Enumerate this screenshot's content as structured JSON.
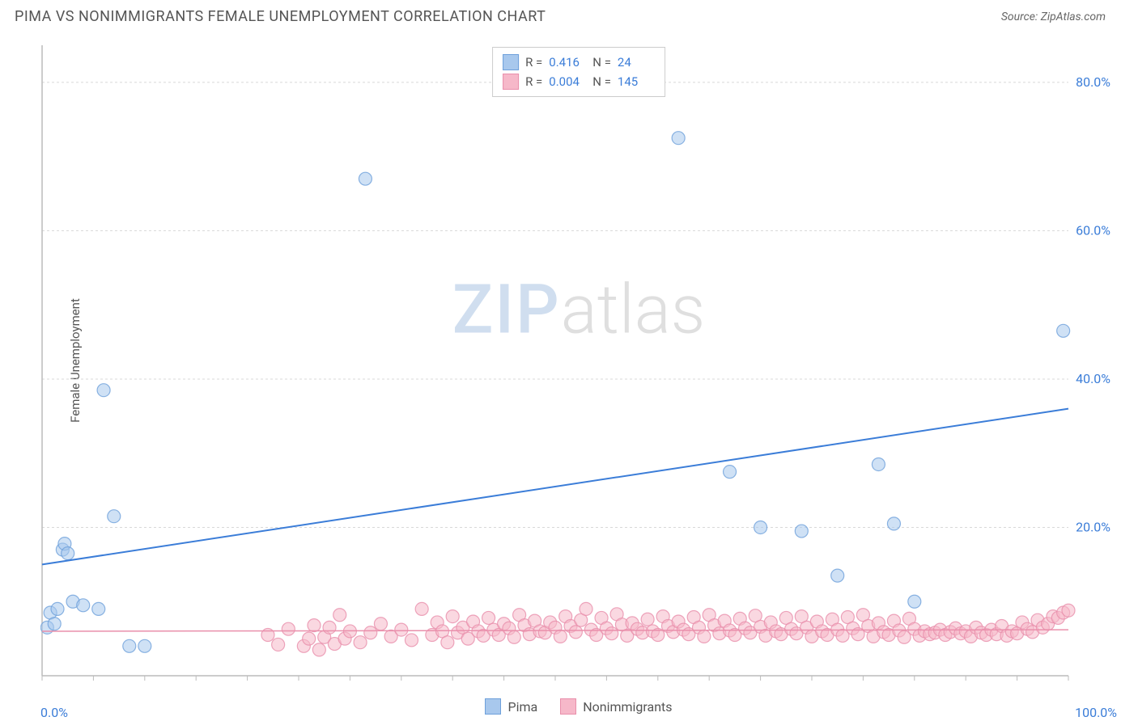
{
  "title": "PIMA VS NONIMMIGRANTS FEMALE UNEMPLOYMENT CORRELATION CHART",
  "source": "Source: ZipAtlas.com",
  "ylabel": "Female Unemployment",
  "watermark": {
    "part1": "ZIP",
    "part2": "atlas"
  },
  "chart": {
    "type": "scatter",
    "background_color": "#ffffff",
    "grid_color": "#d8d8d8",
    "axis_color": "#bbbbbb",
    "xlim": [
      0,
      100
    ],
    "ylim": [
      0,
      85
    ],
    "y_ticks": [
      20,
      40,
      60,
      80
    ],
    "y_tick_labels": [
      "20.0%",
      "40.0%",
      "60.0%",
      "80.0%"
    ],
    "y_tick_color": "#3b7dd8",
    "y_tick_fontsize": 16,
    "x_minor_ticks": [
      0,
      5,
      10,
      15,
      20,
      25,
      30,
      35,
      40,
      45,
      50,
      55,
      60,
      65,
      70,
      75,
      80,
      85,
      90,
      95,
      100
    ],
    "x_start_label": "0.0%",
    "x_end_label": "100.0%",
    "x_label_color": "#3b7dd8",
    "marker_radius": 8,
    "marker_opacity": 0.55,
    "series": [
      {
        "name": "Pima",
        "fill": "#a8c8ed",
        "stroke": "#6ea0db",
        "R": "0.416",
        "N": "24",
        "trend": {
          "x1": 0,
          "y1": 15,
          "x2": 100,
          "y2": 36,
          "color": "#3b7dd8",
          "width": 2
        },
        "points": [
          [
            0.5,
            6.5
          ],
          [
            0.8,
            8.5
          ],
          [
            1.2,
            7.0
          ],
          [
            1.5,
            9.0
          ],
          [
            2.0,
            17.0
          ],
          [
            2.2,
            17.8
          ],
          [
            2.5,
            16.5
          ],
          [
            3.0,
            10.0
          ],
          [
            4.0,
            9.5
          ],
          [
            5.5,
            9.0
          ],
          [
            6.0,
            38.5
          ],
          [
            7.0,
            21.5
          ],
          [
            8.5,
            4.0
          ],
          [
            10.0,
            4.0
          ],
          [
            31.5,
            67.0
          ],
          [
            62.0,
            72.5
          ],
          [
            67.0,
            27.5
          ],
          [
            70.0,
            20.0
          ],
          [
            74.0,
            19.5
          ],
          [
            77.5,
            13.5
          ],
          [
            81.5,
            28.5
          ],
          [
            83.0,
            20.5
          ],
          [
            85.0,
            10.0
          ],
          [
            99.5,
            46.5
          ]
        ]
      },
      {
        "name": "Nonimmigrants",
        "fill": "#f6b8c9",
        "stroke": "#e98fab",
        "R": "0.004",
        "N": "145",
        "trend": {
          "x1": 0,
          "y1": 6.0,
          "x2": 100,
          "y2": 6.2,
          "color": "#e98fab",
          "width": 1.5
        },
        "points": [
          [
            22,
            5.5
          ],
          [
            23,
            4.2
          ],
          [
            24,
            6.3
          ],
          [
            25.5,
            4.0
          ],
          [
            26,
            5.0
          ],
          [
            26.5,
            6.8
          ],
          [
            27,
            3.5
          ],
          [
            27.5,
            5.2
          ],
          [
            28,
            6.5
          ],
          [
            28.5,
            4.3
          ],
          [
            29,
            8.2
          ],
          [
            29.5,
            5.0
          ],
          [
            30,
            6.0
          ],
          [
            31,
            4.5
          ],
          [
            32,
            5.8
          ],
          [
            33,
            7.0
          ],
          [
            34,
            5.3
          ],
          [
            35,
            6.2
          ],
          [
            36,
            4.8
          ],
          [
            37,
            9.0
          ],
          [
            38,
            5.5
          ],
          [
            38.5,
            7.2
          ],
          [
            39,
            6.0
          ],
          [
            39.5,
            4.5
          ],
          [
            40,
            8.0
          ],
          [
            40.5,
            5.8
          ],
          [
            41,
            6.5
          ],
          [
            41.5,
            5.0
          ],
          [
            42,
            7.3
          ],
          [
            42.5,
            6.0
          ],
          [
            43,
            5.4
          ],
          [
            43.5,
            7.8
          ],
          [
            44,
            6.2
          ],
          [
            44.5,
            5.5
          ],
          [
            45,
            7.0
          ],
          [
            45.5,
            6.4
          ],
          [
            46,
            5.2
          ],
          [
            46.5,
            8.2
          ],
          [
            47,
            6.8
          ],
          [
            47.5,
            5.6
          ],
          [
            48,
            7.4
          ],
          [
            48.5,
            6.0
          ],
          [
            49,
            5.8
          ],
          [
            49.5,
            7.2
          ],
          [
            50,
            6.5
          ],
          [
            50.5,
            5.3
          ],
          [
            51,
            8.0
          ],
          [
            51.5,
            6.7
          ],
          [
            52,
            5.9
          ],
          [
            52.5,
            7.5
          ],
          [
            53,
            9.0
          ],
          [
            53.5,
            6.2
          ],
          [
            54,
            5.5
          ],
          [
            54.5,
            7.8
          ],
          [
            55,
            6.4
          ],
          [
            55.5,
            5.7
          ],
          [
            56,
            8.3
          ],
          [
            56.5,
            6.9
          ],
          [
            57,
            5.4
          ],
          [
            57.5,
            7.1
          ],
          [
            58,
            6.3
          ],
          [
            58.5,
            5.8
          ],
          [
            59,
            7.6
          ],
          [
            59.5,
            6.0
          ],
          [
            60,
            5.5
          ],
          [
            60.5,
            8.0
          ],
          [
            61,
            6.7
          ],
          [
            61.5,
            5.9
          ],
          [
            62,
            7.3
          ],
          [
            62.5,
            6.2
          ],
          [
            63,
            5.6
          ],
          [
            63.5,
            7.9
          ],
          [
            64,
            6.5
          ],
          [
            64.5,
            5.3
          ],
          [
            65,
            8.2
          ],
          [
            65.5,
            6.8
          ],
          [
            66,
            5.7
          ],
          [
            66.5,
            7.4
          ],
          [
            67,
            6.1
          ],
          [
            67.5,
            5.5
          ],
          [
            68,
            7.7
          ],
          [
            68.5,
            6.4
          ],
          [
            69,
            5.8
          ],
          [
            69.5,
            8.1
          ],
          [
            70,
            6.6
          ],
          [
            70.5,
            5.4
          ],
          [
            71,
            7.2
          ],
          [
            71.5,
            6.0
          ],
          [
            72,
            5.6
          ],
          [
            72.5,
            7.8
          ],
          [
            73,
            6.3
          ],
          [
            73.5,
            5.7
          ],
          [
            74,
            8.0
          ],
          [
            74.5,
            6.5
          ],
          [
            75,
            5.3
          ],
          [
            75.5,
            7.3
          ],
          [
            76,
            6.0
          ],
          [
            76.5,
            5.5
          ],
          [
            77,
            7.6
          ],
          [
            77.5,
            6.2
          ],
          [
            78,
            5.4
          ],
          [
            78.5,
            7.9
          ],
          [
            79,
            6.4
          ],
          [
            79.5,
            5.6
          ],
          [
            80,
            8.2
          ],
          [
            80.5,
            6.7
          ],
          [
            81,
            5.3
          ],
          [
            81.5,
            7.1
          ],
          [
            82,
            5.9
          ],
          [
            82.5,
            5.5
          ],
          [
            83,
            7.4
          ],
          [
            83.5,
            6.1
          ],
          [
            84,
            5.2
          ],
          [
            84.5,
            7.7
          ],
          [
            85,
            6.3
          ],
          [
            85.5,
            5.4
          ],
          [
            86,
            6.0
          ],
          [
            86.5,
            5.6
          ],
          [
            87,
            5.8
          ],
          [
            87.5,
            6.2
          ],
          [
            88,
            5.5
          ],
          [
            88.5,
            5.9
          ],
          [
            89,
            6.4
          ],
          [
            89.5,
            5.7
          ],
          [
            90,
            6.0
          ],
          [
            90.5,
            5.3
          ],
          [
            91,
            6.5
          ],
          [
            91.5,
            5.8
          ],
          [
            92,
            5.5
          ],
          [
            92.5,
            6.2
          ],
          [
            93,
            5.6
          ],
          [
            93.5,
            6.7
          ],
          [
            94,
            5.4
          ],
          [
            94.5,
            6.0
          ],
          [
            95,
            5.7
          ],
          [
            95.5,
            7.2
          ],
          [
            96,
            6.3
          ],
          [
            96.5,
            5.9
          ],
          [
            97,
            7.5
          ],
          [
            97.5,
            6.5
          ],
          [
            98,
            7.0
          ],
          [
            98.5,
            8.0
          ],
          [
            99,
            7.8
          ],
          [
            99.5,
            8.5
          ],
          [
            100,
            8.8
          ]
        ]
      }
    ]
  },
  "legend_bottom": [
    {
      "label": "Pima",
      "fill": "#a8c8ed",
      "stroke": "#6ea0db"
    },
    {
      "label": "Nonimmigrants",
      "fill": "#f6b8c9",
      "stroke": "#e98fab"
    }
  ]
}
